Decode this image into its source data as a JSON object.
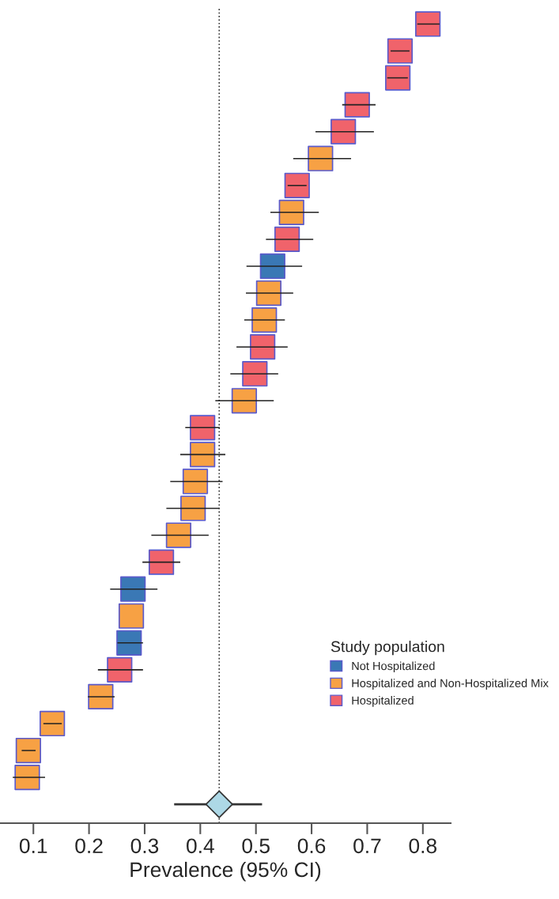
{
  "chart_data": {
    "type": "scatter",
    "orientation": "horizontal",
    "xlabel": "Prevalence (95% CI)",
    "legend_title": "Study population",
    "legend": "bottom right",
    "marker": "square",
    "tick_labels": "x",
    "grid": false,
    "categories": [
      null,
      null,
      null,
      null,
      null,
      null,
      null,
      null,
      null,
      null,
      null,
      null,
      null,
      null,
      null,
      null,
      null,
      null,
      null,
      null,
      null,
      null,
      null,
      null,
      null,
      null,
      null,
      null,
      null,
      null
    ],
    "xlim": [
      0.04,
      0.85
    ],
    "xticks": [
      0.1,
      0.2,
      0.3,
      0.4,
      0.5,
      0.6,
      0.7,
      0.8
    ],
    "series": [
      {
        "name": "Not Hospitalized",
        "color": "#3a78b5",
        "values": [
          null,
          null,
          null,
          null,
          null,
          null,
          null,
          null,
          null,
          0.53,
          null,
          null,
          null,
          null,
          null,
          null,
          null,
          null,
          null,
          null,
          null,
          0.279,
          null,
          0.272,
          null,
          null,
          null,
          null,
          null,
          null
        ],
        "errors": [
          null,
          null,
          null,
          null,
          null,
          null,
          null,
          null,
          null,
          [
            0.483,
            0.583
          ],
          null,
          null,
          null,
          null,
          null,
          null,
          null,
          null,
          null,
          null,
          null,
          [
            0.238,
            0.323
          ],
          null,
          [
            0.251,
            0.297
          ],
          null,
          null,
          null,
          null,
          null,
          null
        ]
      },
      {
        "name": "Hospitalized and Non-Hospitalized Mix",
        "color": "#f7a144",
        "values": [
          null,
          null,
          null,
          null,
          null,
          0.616,
          null,
          0.564,
          null,
          null,
          0.523,
          0.515,
          null,
          null,
          0.479,
          null,
          0.404,
          0.391,
          0.387,
          0.361,
          null,
          null,
          0.276,
          null,
          null,
          0.221,
          0.134,
          0.091,
          0.089,
          null
        ],
        "errors": [
          null,
          null,
          null,
          null,
          null,
          [
            0.567,
            0.671
          ],
          null,
          [
            0.526,
            0.613
          ],
          null,
          null,
          [
            0.482,
            0.567
          ],
          [
            0.479,
            0.552
          ],
          null,
          null,
          [
            0.427,
            0.532
          ],
          null,
          [
            0.364,
            0.445
          ],
          [
            0.346,
            0.44
          ],
          [
            0.339,
            0.434
          ],
          [
            0.312,
            0.415
          ],
          null,
          null,
          null,
          null,
          null,
          [
            0.198,
            0.246
          ],
          [
            0.118,
            0.151
          ],
          [
            0.079,
            0.104
          ],
          [
            0.063,
            0.121
          ],
          null
        ]
      },
      {
        "name": "Hospitalized",
        "color": "#f0636b",
        "values": [
          0.809,
          0.759,
          0.755,
          0.682,
          0.657,
          null,
          0.574,
          null,
          0.556,
          null,
          null,
          null,
          0.512,
          0.498,
          null,
          0.404,
          null,
          null,
          null,
          null,
          0.33,
          null,
          null,
          null,
          0.255,
          null,
          null,
          null,
          null,
          null
        ],
        "errors": [
          [
            0.79,
            0.83
          ],
          [
            0.742,
            0.776
          ],
          [
            0.736,
            0.773
          ],
          [
            0.655,
            0.715
          ],
          [
            0.607,
            0.712
          ],
          null,
          [
            0.557,
            0.591
          ],
          null,
          [
            0.518,
            0.603
          ],
          null,
          null,
          null,
          [
            0.465,
            0.557
          ],
          [
            0.454,
            0.54
          ],
          null,
          [
            0.373,
            0.435
          ],
          null,
          null,
          null,
          null,
          [
            0.296,
            0.364
          ],
          null,
          null,
          null,
          [
            0.216,
            0.297
          ],
          null,
          null,
          null,
          null,
          null
        ]
      },
      {
        "color": "#add8e6",
        "marker": "diamond",
        "values": [
          null,
          null,
          null,
          null,
          null,
          null,
          null,
          null,
          null,
          null,
          null,
          null,
          null,
          null,
          null,
          null,
          null,
          null,
          null,
          null,
          null,
          null,
          null,
          null,
          null,
          null,
          null,
          null,
          null,
          0.434
        ],
        "errors": [
          null,
          null,
          null,
          null,
          null,
          null,
          null,
          null,
          null,
          null,
          null,
          null,
          null,
          null,
          null,
          null,
          null,
          null,
          null,
          null,
          null,
          null,
          null,
          null,
          null,
          null,
          null,
          null,
          null,
          [
            0.353,
            0.511
          ]
        ]
      }
    ],
    "ref_lines": [
      {
        "axis": "x",
        "value": 0.434,
        "line_style": "dotted"
      }
    ]
  }
}
